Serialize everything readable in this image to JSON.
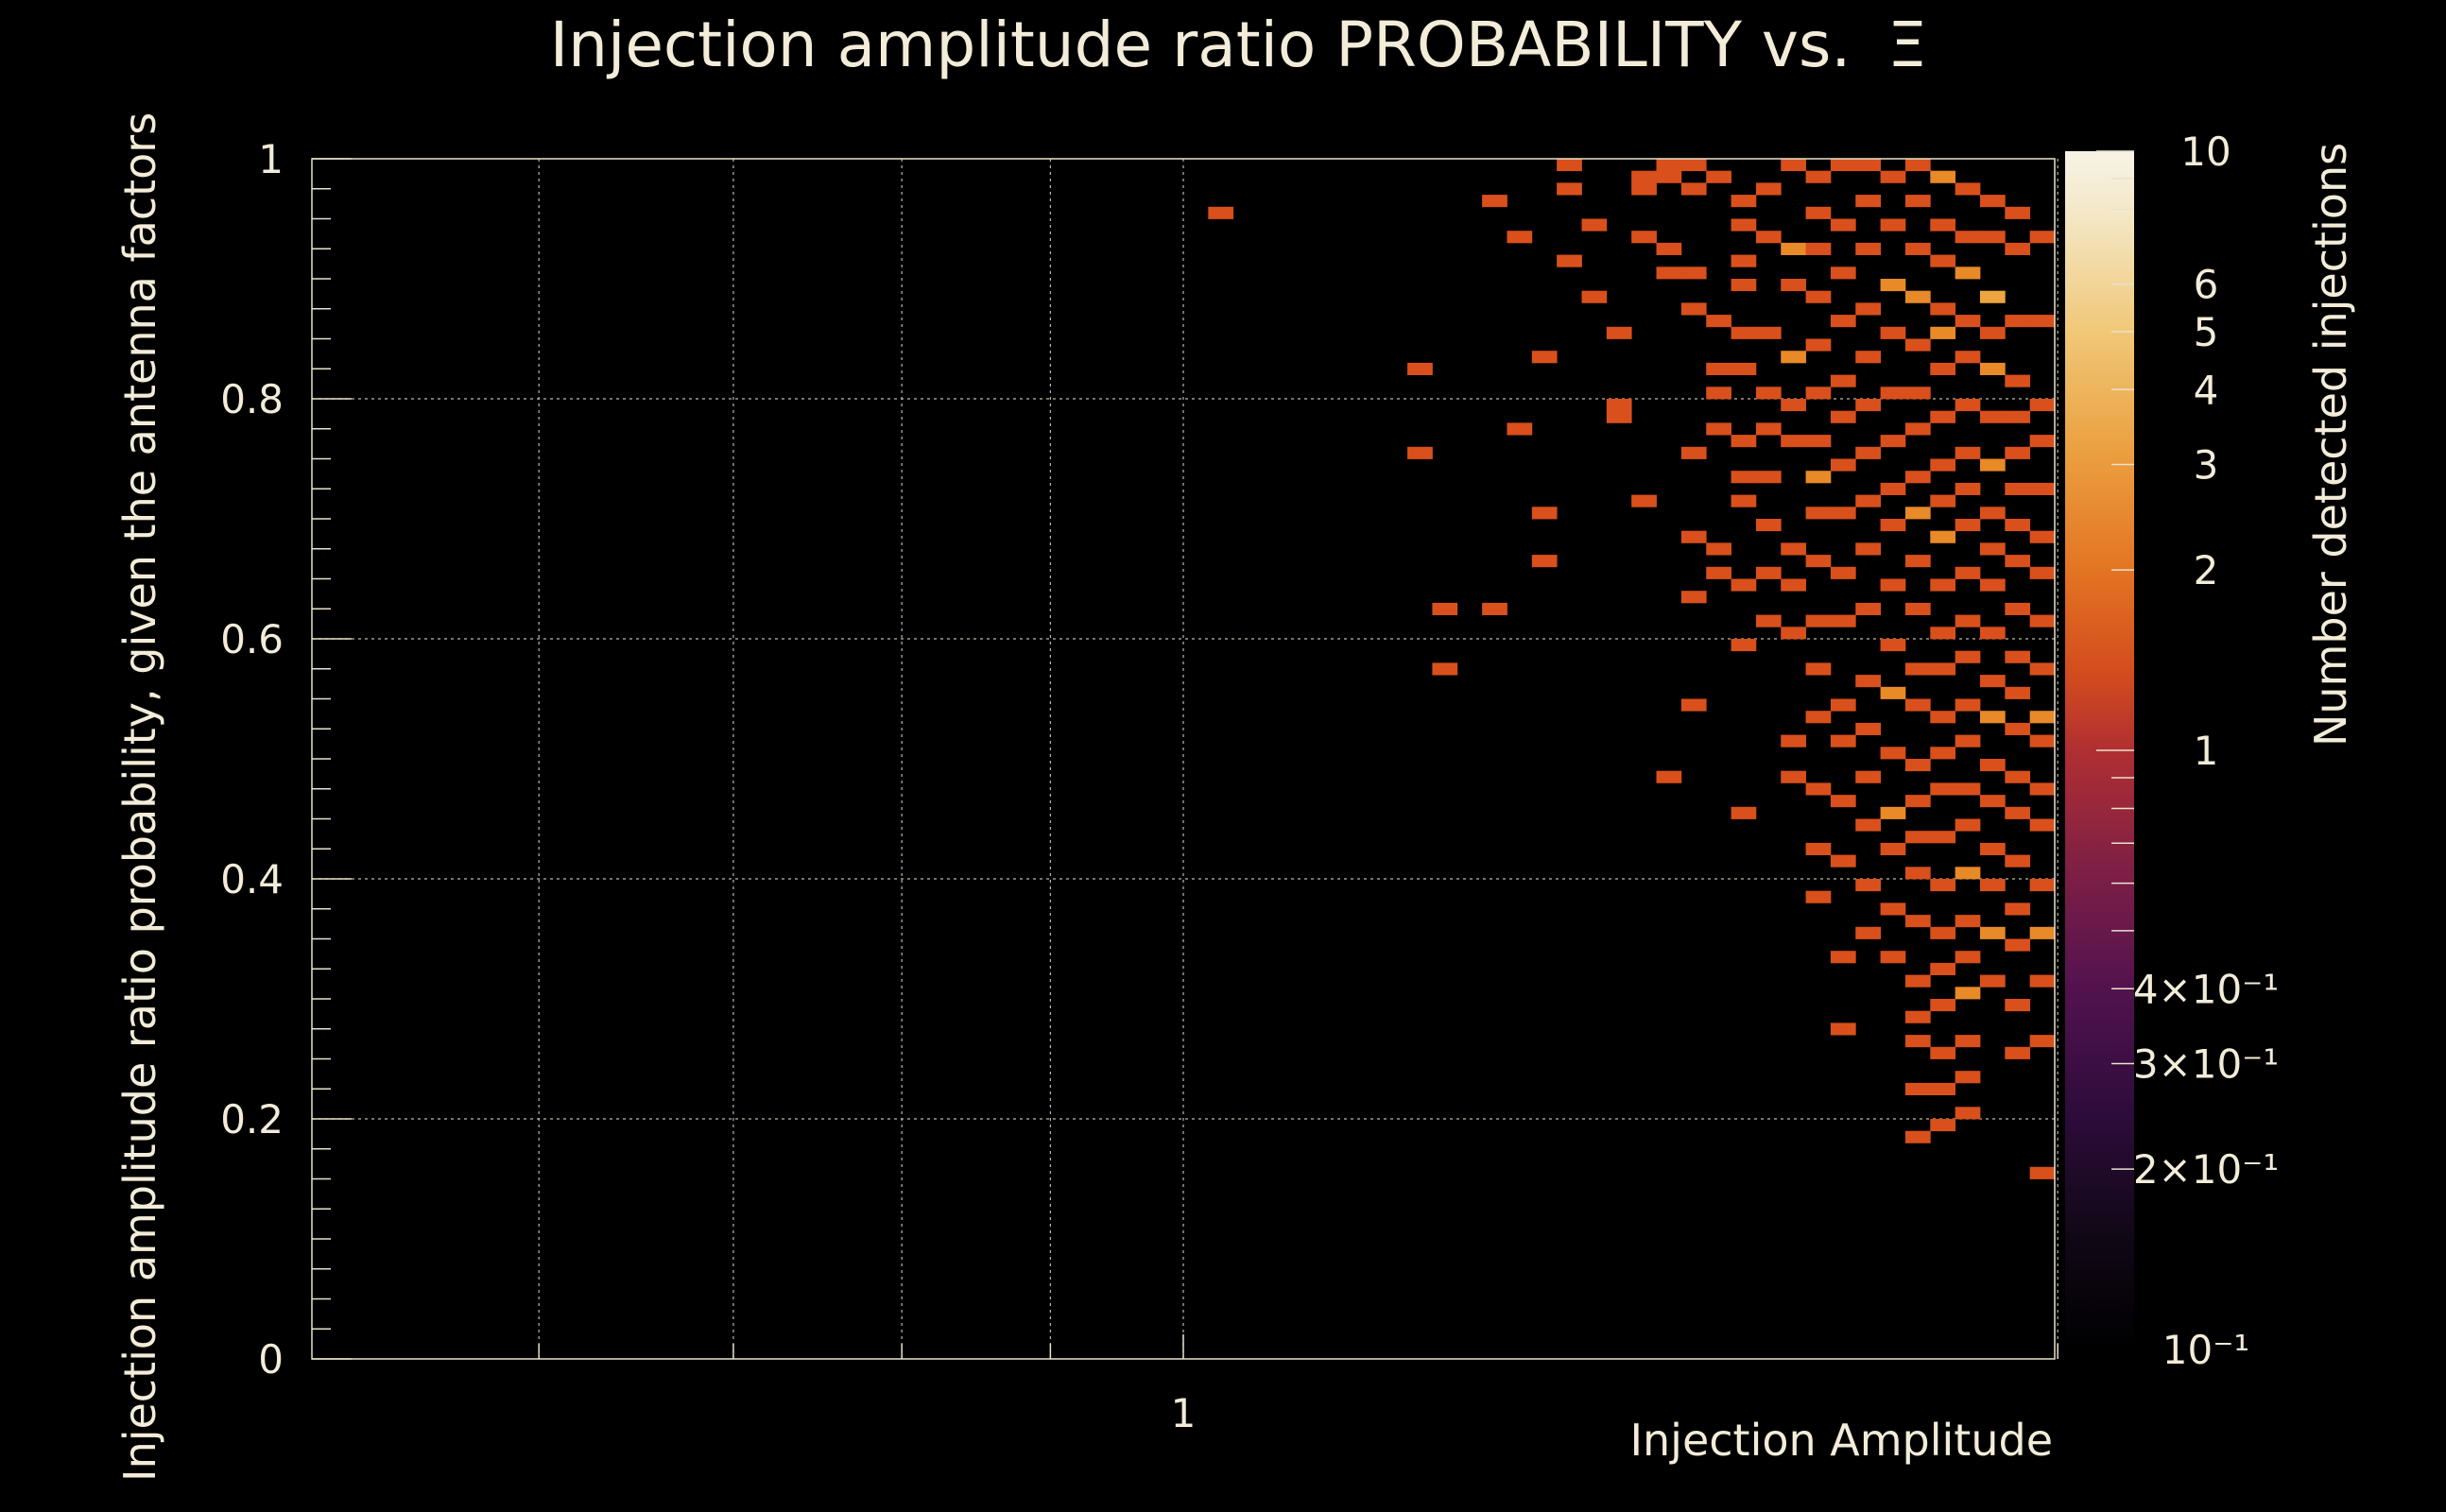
{
  "chart_data": {
    "type": "heatmap",
    "title": "Injection amplitude ratio PROBABILITY vs.",
    "title_symbol": "Ξ",
    "xlabel": "Injection Amplitude",
    "ylabel": "Injection amplitude ratio probability, given the antenna factors",
    "zlabel": "Number detected injections",
    "x_scale": "log",
    "x_tick_labels": [
      {
        "value": 1,
        "label": "1"
      }
    ],
    "y_ticks": [
      0,
      0.2,
      0.4,
      0.6,
      0.8,
      1
    ],
    "y_tick_labels": [
      "0",
      "0.2",
      "0.4",
      "0.6",
      "0.8",
      "1"
    ],
    "ylim": [
      0,
      1
    ],
    "z_scale": "log",
    "zlim": [
      0.1,
      10
    ],
    "z_tick_labels": [
      {
        "value": 10,
        "label": "10"
      },
      {
        "value": 6,
        "label": "6"
      },
      {
        "value": 5,
        "label": "5"
      },
      {
        "value": 4,
        "label": "4"
      },
      {
        "value": 3,
        "label": "3"
      },
      {
        "value": 2,
        "label": "2"
      },
      {
        "value": 1,
        "label": "1"
      },
      {
        "value": 0.4,
        "label": "4×10⁻¹"
      },
      {
        "value": 0.3,
        "label": "3×10⁻¹"
      },
      {
        "value": 0.2,
        "label": "2×10⁻¹"
      },
      {
        "value": 0.1,
        "label": "10⁻¹"
      }
    ],
    "grid": true,
    "colors": {
      "background": "#000000",
      "text": "#f2ecd8",
      "cell_1": "#d9501c",
      "cell_2": "#e88a28",
      "cell_3": "#eca640"
    },
    "bins": {
      "x_bin_count": 70,
      "x_range_log10": [
        -0.3,
        0.3
      ],
      "y_bin_count": 100,
      "y_range": [
        0,
        1
      ],
      "note_on_cells": "cells list [x_bin, y_bin, count]"
    },
    "cells": [
      [
        36,
        95,
        1
      ],
      [
        44,
        82,
        1
      ],
      [
        44,
        75,
        1
      ],
      [
        45,
        57,
        1
      ],
      [
        45,
        62,
        1
      ],
      [
        47,
        96,
        1
      ],
      [
        48,
        93,
        1
      ],
      [
        47,
        62,
        1
      ],
      [
        48,
        77,
        1
      ],
      [
        49,
        70,
        1
      ],
      [
        49,
        66,
        1
      ],
      [
        49,
        83,
        1
      ],
      [
        50,
        99,
        1
      ],
      [
        50,
        97,
        1
      ],
      [
        50,
        91,
        1
      ],
      [
        51,
        94,
        1
      ],
      [
        51,
        88,
        1
      ],
      [
        52,
        85,
        1
      ],
      [
        52,
        79,
        1
      ],
      [
        52,
        78,
        1
      ],
      [
        53,
        98,
        1
      ],
      [
        53,
        97,
        1
      ],
      [
        53,
        93,
        1
      ],
      [
        53,
        71,
        1
      ],
      [
        54,
        99,
        1
      ],
      [
        54,
        98,
        1
      ],
      [
        54,
        92,
        1
      ],
      [
        54,
        90,
        1
      ],
      [
        54,
        48,
        1
      ],
      [
        55,
        99,
        1
      ],
      [
        55,
        97,
        1
      ],
      [
        55,
        90,
        1
      ],
      [
        55,
        87,
        1
      ],
      [
        55,
        75,
        1
      ],
      [
        55,
        68,
        1
      ],
      [
        55,
        63,
        1
      ],
      [
        55,
        54,
        1
      ],
      [
        56,
        98,
        1
      ],
      [
        56,
        86,
        1
      ],
      [
        56,
        82,
        1
      ],
      [
        56,
        80,
        1
      ],
      [
        56,
        77,
        1
      ],
      [
        56,
        67,
        1
      ],
      [
        56,
        65,
        1
      ],
      [
        57,
        96,
        1
      ],
      [
        57,
        94,
        1
      ],
      [
        57,
        91,
        1
      ],
      [
        57,
        89,
        1
      ],
      [
        57,
        85,
        1
      ],
      [
        57,
        82,
        1
      ],
      [
        57,
        76,
        1
      ],
      [
        57,
        73,
        1
      ],
      [
        57,
        71,
        1
      ],
      [
        57,
        64,
        1
      ],
      [
        57,
        59,
        1
      ],
      [
        57,
        45,
        1
      ],
      [
        58,
        97,
        1
      ],
      [
        58,
        93,
        1
      ],
      [
        58,
        85,
        1
      ],
      [
        58,
        80,
        1
      ],
      [
        58,
        77,
        1
      ],
      [
        58,
        73,
        1
      ],
      [
        58,
        69,
        1
      ],
      [
        58,
        65,
        1
      ],
      [
        58,
        61,
        1
      ],
      [
        59,
        99,
        1
      ],
      [
        59,
        92,
        2
      ],
      [
        59,
        89,
        1
      ],
      [
        59,
        83,
        2
      ],
      [
        59,
        79,
        1
      ],
      [
        59,
        76,
        1
      ],
      [
        59,
        67,
        1
      ],
      [
        59,
        64,
        1
      ],
      [
        59,
        60,
        1
      ],
      [
        59,
        51,
        1
      ],
      [
        59,
        48,
        1
      ],
      [
        60,
        98,
        1
      ],
      [
        60,
        95,
        1
      ],
      [
        60,
        92,
        1
      ],
      [
        60,
        88,
        1
      ],
      [
        60,
        84,
        1
      ],
      [
        60,
        80,
        1
      ],
      [
        60,
        76,
        1
      ],
      [
        60,
        73,
        2
      ],
      [
        60,
        70,
        1
      ],
      [
        60,
        66,
        1
      ],
      [
        60,
        61,
        1
      ],
      [
        60,
        57,
        1
      ],
      [
        60,
        53,
        1
      ],
      [
        60,
        47,
        1
      ],
      [
        60,
        42,
        1
      ],
      [
        60,
        38,
        1
      ],
      [
        61,
        99,
        1
      ],
      [
        61,
        94,
        1
      ],
      [
        61,
        90,
        1
      ],
      [
        61,
        86,
        1
      ],
      [
        61,
        81,
        1
      ],
      [
        61,
        78,
        1
      ],
      [
        61,
        74,
        1
      ],
      [
        61,
        70,
        1
      ],
      [
        61,
        65,
        1
      ],
      [
        61,
        61,
        1
      ],
      [
        61,
        54,
        1
      ],
      [
        61,
        51,
        1
      ],
      [
        61,
        46,
        1
      ],
      [
        61,
        41,
        1
      ],
      [
        61,
        33,
        1
      ],
      [
        61,
        27,
        1
      ],
      [
        62,
        99,
        1
      ],
      [
        62,
        96,
        1
      ],
      [
        62,
        92,
        1
      ],
      [
        62,
        87,
        1
      ],
      [
        62,
        83,
        1
      ],
      [
        62,
        79,
        1
      ],
      [
        62,
        75,
        1
      ],
      [
        62,
        71,
        1
      ],
      [
        62,
        67,
        1
      ],
      [
        62,
        62,
        1
      ],
      [
        62,
        56,
        1
      ],
      [
        62,
        52,
        1
      ],
      [
        62,
        48,
        1
      ],
      [
        62,
        44,
        1
      ],
      [
        62,
        39,
        1
      ],
      [
        62,
        35,
        1
      ],
      [
        63,
        98,
        1
      ],
      [
        63,
        94,
        1
      ],
      [
        63,
        89,
        2
      ],
      [
        63,
        85,
        1
      ],
      [
        63,
        80,
        1
      ],
      [
        63,
        76,
        1
      ],
      [
        63,
        72,
        1
      ],
      [
        63,
        69,
        1
      ],
      [
        63,
        64,
        1
      ],
      [
        63,
        59,
        1
      ],
      [
        63,
        55,
        2
      ],
      [
        63,
        50,
        1
      ],
      [
        63,
        45,
        2
      ],
      [
        63,
        42,
        1
      ],
      [
        63,
        37,
        1
      ],
      [
        63,
        33,
        1
      ],
      [
        64,
        99,
        1
      ],
      [
        64,
        96,
        1
      ],
      [
        64,
        92,
        1
      ],
      [
        64,
        88,
        2
      ],
      [
        64,
        84,
        1
      ],
      [
        64,
        80,
        1
      ],
      [
        64,
        77,
        1
      ],
      [
        64,
        73,
        1
      ],
      [
        64,
        70,
        2
      ],
      [
        64,
        66,
        1
      ],
      [
        64,
        62,
        1
      ],
      [
        64,
        57,
        1
      ],
      [
        64,
        54,
        1
      ],
      [
        64,
        49,
        1
      ],
      [
        64,
        46,
        1
      ],
      [
        64,
        43,
        1
      ],
      [
        64,
        40,
        1
      ],
      [
        64,
        36,
        1
      ],
      [
        64,
        31,
        1
      ],
      [
        64,
        28,
        1
      ],
      [
        64,
        26,
        1
      ],
      [
        64,
        22,
        1
      ],
      [
        64,
        18,
        1
      ],
      [
        65,
        98,
        2
      ],
      [
        65,
        94,
        1
      ],
      [
        65,
        91,
        1
      ],
      [
        65,
        87,
        1
      ],
      [
        65,
        85,
        2
      ],
      [
        65,
        82,
        1
      ],
      [
        65,
        78,
        1
      ],
      [
        65,
        74,
        1
      ],
      [
        65,
        71,
        1
      ],
      [
        65,
        68,
        2
      ],
      [
        65,
        64,
        1
      ],
      [
        65,
        60,
        1
      ],
      [
        65,
        57,
        1
      ],
      [
        65,
        53,
        1
      ],
      [
        65,
        50,
        1
      ],
      [
        65,
        47,
        1
      ],
      [
        65,
        43,
        1
      ],
      [
        65,
        39,
        1
      ],
      [
        65,
        35,
        1
      ],
      [
        65,
        32,
        1
      ],
      [
        65,
        29,
        1
      ],
      [
        65,
        25,
        1
      ],
      [
        65,
        22,
        1
      ],
      [
        65,
        19,
        1
      ],
      [
        66,
        97,
        1
      ],
      [
        66,
        93,
        1
      ],
      [
        66,
        90,
        2
      ],
      [
        66,
        86,
        1
      ],
      [
        66,
        83,
        1
      ],
      [
        66,
        79,
        1
      ],
      [
        66,
        75,
        1
      ],
      [
        66,
        72,
        1
      ],
      [
        66,
        69,
        1
      ],
      [
        66,
        65,
        1
      ],
      [
        66,
        61,
        1
      ],
      [
        66,
        58,
        1
      ],
      [
        66,
        54,
        1
      ],
      [
        66,
        51,
        1
      ],
      [
        66,
        47,
        1
      ],
      [
        66,
        44,
        1
      ],
      [
        66,
        40,
        2
      ],
      [
        66,
        36,
        1
      ],
      [
        66,
        33,
        1
      ],
      [
        66,
        30,
        2
      ],
      [
        66,
        26,
        1
      ],
      [
        66,
        23,
        1
      ],
      [
        66,
        20,
        1
      ],
      [
        67,
        96,
        1
      ],
      [
        67,
        93,
        1
      ],
      [
        67,
        88,
        3
      ],
      [
        67,
        85,
        1
      ],
      [
        67,
        82,
        2
      ],
      [
        67,
        78,
        1
      ],
      [
        67,
        74,
        2
      ],
      [
        67,
        70,
        1
      ],
      [
        67,
        67,
        1
      ],
      [
        67,
        64,
        1
      ],
      [
        67,
        60,
        1
      ],
      [
        67,
        56,
        1
      ],
      [
        67,
        53,
        2
      ],
      [
        67,
        49,
        1
      ],
      [
        67,
        46,
        1
      ],
      [
        67,
        42,
        1
      ],
      [
        67,
        39,
        1
      ],
      [
        67,
        35,
        2
      ],
      [
        67,
        31,
        1
      ],
      [
        68,
        95,
        1
      ],
      [
        68,
        92,
        1
      ],
      [
        68,
        86,
        1
      ],
      [
        68,
        81,
        1
      ],
      [
        68,
        78,
        1
      ],
      [
        68,
        75,
        1
      ],
      [
        68,
        72,
        1
      ],
      [
        68,
        69,
        1
      ],
      [
        68,
        66,
        1
      ],
      [
        68,
        62,
        1
      ],
      [
        68,
        58,
        1
      ],
      [
        68,
        55,
        1
      ],
      [
        68,
        52,
        1
      ],
      [
        68,
        48,
        1
      ],
      [
        68,
        45,
        1
      ],
      [
        68,
        41,
        1
      ],
      [
        68,
        37,
        1
      ],
      [
        68,
        34,
        1
      ],
      [
        68,
        29,
        1
      ],
      [
        68,
        25,
        1
      ],
      [
        69,
        93,
        1
      ],
      [
        69,
        86,
        1
      ],
      [
        69,
        79,
        1
      ],
      [
        69,
        76,
        1
      ],
      [
        69,
        72,
        1
      ],
      [
        69,
        68,
        1
      ],
      [
        69,
        65,
        1
      ],
      [
        69,
        61,
        1
      ],
      [
        69,
        57,
        1
      ],
      [
        69,
        53,
        2
      ],
      [
        69,
        51,
        1
      ],
      [
        69,
        47,
        1
      ],
      [
        69,
        44,
        1
      ],
      [
        69,
        39,
        1
      ],
      [
        69,
        35,
        2
      ],
      [
        69,
        31,
        1
      ],
      [
        69,
        26,
        1
      ],
      [
        69,
        15,
        1
      ]
    ]
  }
}
